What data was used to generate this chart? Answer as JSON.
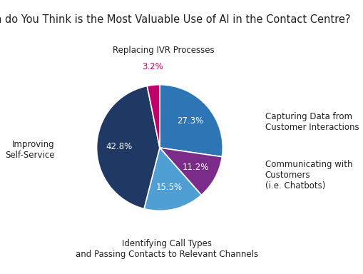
{
  "title": "Which do You Think is the Most Valuable Use of AI in the Contact Centre?",
  "slices": [
    {
      "label": "Capturing Data from\nCustomer Interactions",
      "value": 27.3,
      "color": "#2E75B6",
      "pct_label": "27.3%",
      "pct_color": "white"
    },
    {
      "label": "Communicating with\nCustomers\n(i.e. Chatbots)",
      "value": 11.2,
      "color": "#7B2C8B",
      "pct_label": "11.2%",
      "pct_color": "white"
    },
    {
      "label": "Identifying Call Types\nand Passing Contacts to Relevant Channels",
      "value": 15.5,
      "color": "#4F9FD5",
      "pct_label": "15.5%",
      "pct_color": "white"
    },
    {
      "label": "Improving\nSelf-Service",
      "value": 42.8,
      "color": "#1F3864",
      "pct_label": "42.8%",
      "pct_color": "white"
    },
    {
      "label": "Replacing IVR Processes",
      "value": 3.2,
      "color": "#C0006A",
      "pct_label": "3.2%",
      "pct_color": "#C0006A"
    }
  ],
  "title_fontsize": 10.5,
  "label_fontsize": 8.5,
  "pct_fontsize": 8.5,
  "background_color": "#FFFFFF",
  "startangle": 90,
  "figsize": [
    5.1,
    3.84
  ],
  "dpi": 100
}
